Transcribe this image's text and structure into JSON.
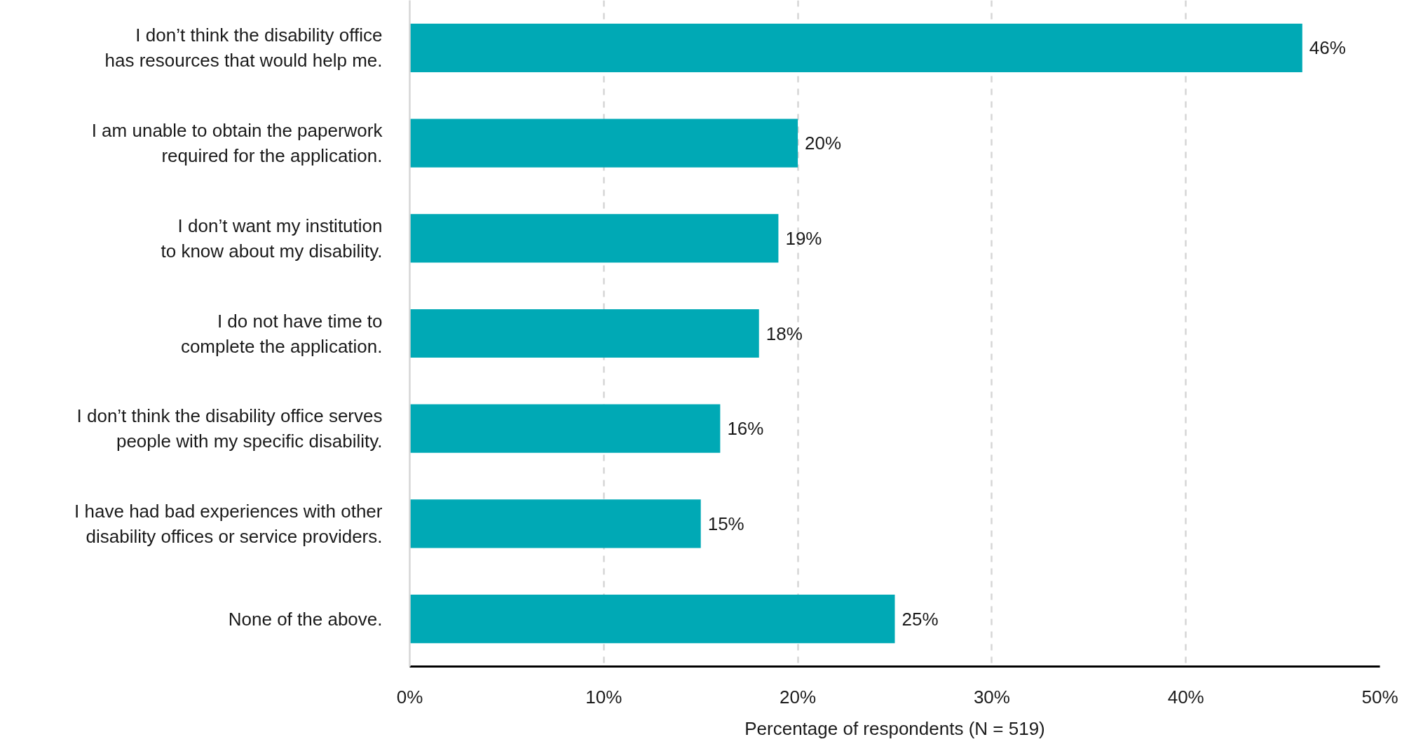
{
  "chart_data": {
    "type": "bar",
    "orientation": "horizontal",
    "categories": [
      "I don’t think the disability office has resources that would help me.",
      "I am unable to obtain the paperwork required for the application.",
      "I don’t want my institution to know about my disability.",
      "I do not have time to complete the application.",
      "I don’t think the disability office serves people with my specific disability.",
      "I have had bad experiences with other disability offices or service providers.",
      "None of the above."
    ],
    "values": [
      46,
      20,
      19,
      18,
      16,
      15,
      25
    ],
    "color": "#00a9b5",
    "value_labels": [
      "46%",
      "20%",
      "19%",
      "18%",
      "16%",
      "15%",
      "25%"
    ],
    "xlabel": "Percentage of respondents (N = 519)",
    "xlim": [
      0,
      50
    ],
    "xticks": [
      {
        "value": 0,
        "label": "0%"
      },
      {
        "value": 10,
        "label": "10%"
      },
      {
        "value": 20,
        "label": "20%"
      },
      {
        "value": 30,
        "label": "30%"
      },
      {
        "value": 40,
        "label": "40%"
      },
      {
        "value": 50,
        "label": "50%"
      }
    ],
    "grid": "x"
  }
}
